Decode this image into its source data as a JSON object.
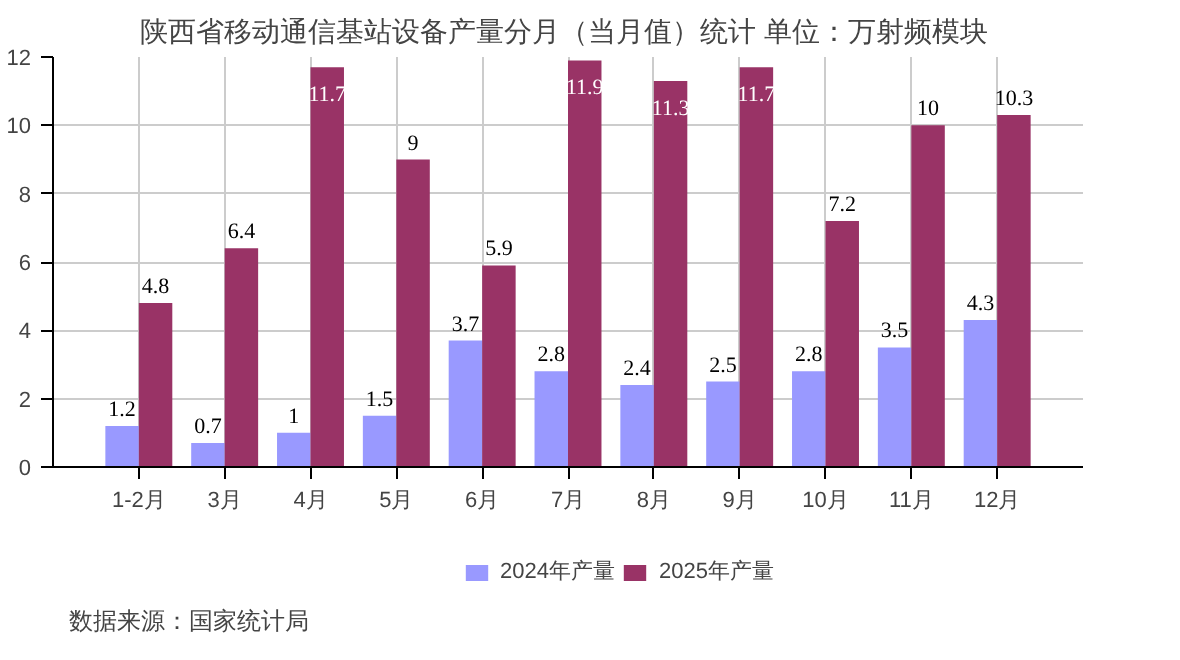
{
  "chart_data": {
    "type": "bar",
    "title": "陕西省移动通信基站设备产量分月（当月值）统计  单位：万射频模块",
    "categories": [
      "1-2月",
      "3月",
      "4月",
      "5月",
      "6月",
      "7月",
      "8月",
      "9月",
      "10月",
      "11月",
      "12月"
    ],
    "series": [
      {
        "name": "2024年产量",
        "color": "#9999ff",
        "values": [
          1.2,
          0.7,
          1,
          1.5,
          3.7,
          2.8,
          2.4,
          2.5,
          2.8,
          3.5,
          4.3
        ]
      },
      {
        "name": "2025年产量",
        "color": "#993366",
        "values": [
          4.8,
          6.4,
          11.7,
          9,
          5.9,
          11.9,
          11.3,
          11.7,
          7.2,
          10,
          10.3
        ]
      }
    ],
    "ylim": [
      0,
      12
    ],
    "yticks": [
      0,
      2,
      4,
      6,
      8,
      10,
      12
    ],
    "grid": true,
    "legend": "bottom",
    "data_labels": true,
    "annotations": [
      "数据来源：国家统计局"
    ]
  }
}
